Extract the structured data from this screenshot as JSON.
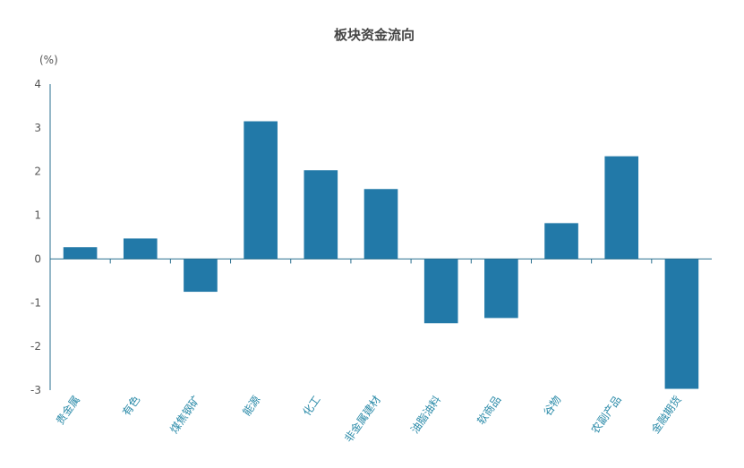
{
  "chart_data": {
    "type": "bar",
    "title": "板块资金流向",
    "ylabel": "(%)",
    "xlabel": "",
    "ylim": [
      -3,
      4
    ],
    "yticks": [
      4,
      3,
      2,
      1,
      0,
      -1,
      -2,
      -3
    ],
    "grid": false,
    "legend": "none",
    "bar_color": "#2279a8",
    "axis_color": "#2a6f8f",
    "categories": [
      "贵金属",
      "有色",
      "煤焦钢矿",
      "能源",
      "化工",
      "非金属建材",
      "油脂油料",
      "软商品",
      "谷物",
      "农副产品",
      "金融期货"
    ],
    "values": [
      0.27,
      0.47,
      -0.75,
      3.15,
      2.03,
      1.6,
      -1.47,
      -1.35,
      0.82,
      2.35,
      -2.97
    ]
  }
}
